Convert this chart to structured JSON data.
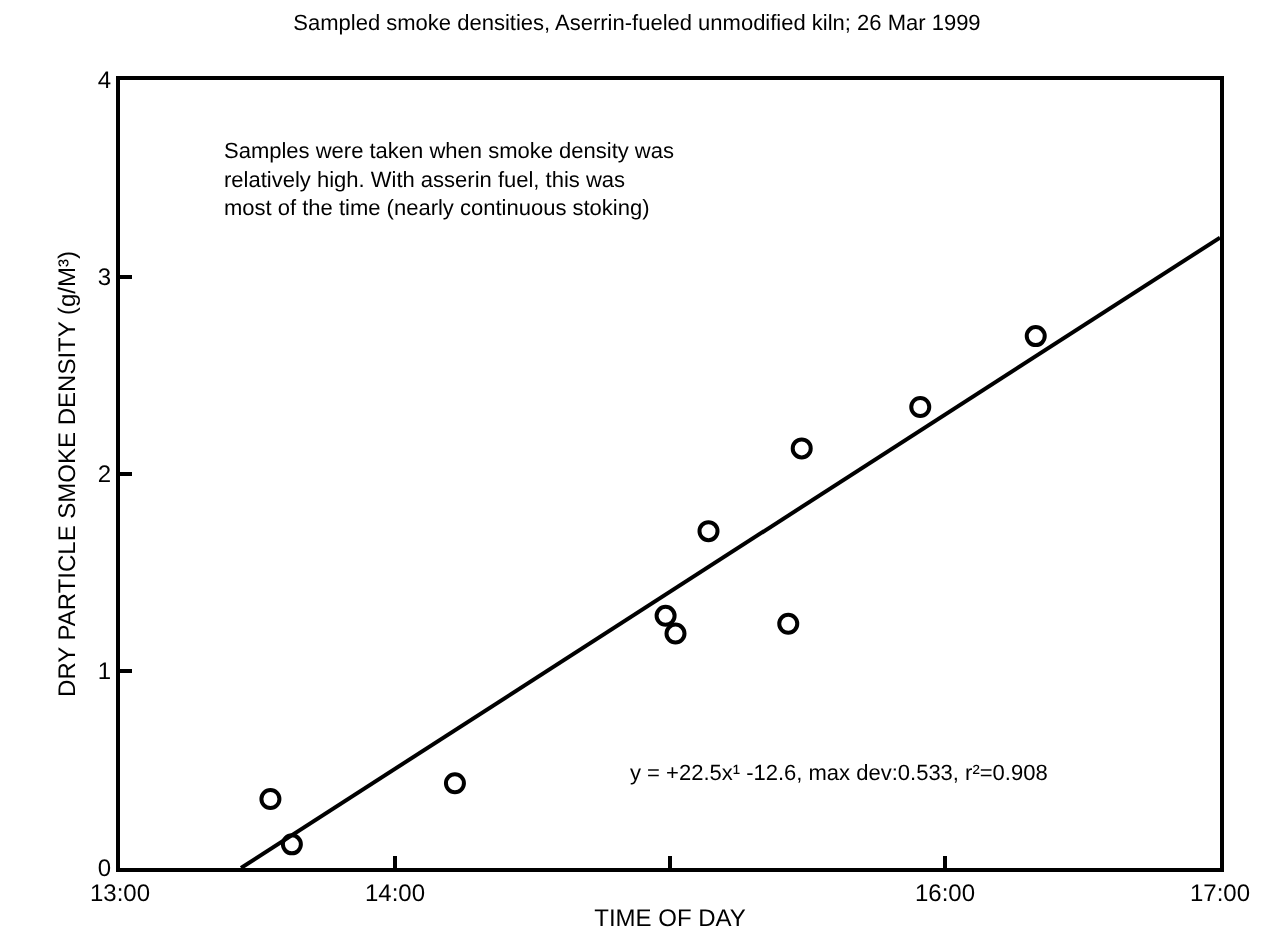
{
  "chart_data": {
    "type": "scatter",
    "title": "Sampled smoke densities, Aserrin-fueled unmodified kiln; 26 Mar 1999",
    "xlabel": "TIME OF DAY",
    "ylabel": "DRY PARTICLE SMOKE DENSITY (g/M³)",
    "annotations": [
      "Samples were taken when smoke density was relatively high. With asserin fuel, this was most of the time (nearly continuous stoking)",
      "y = +22.5x¹ -12.6, max dev:0.533, r²=0.908"
    ],
    "series": [
      {
        "marker": "circle",
        "color": "#000000",
        "x": [
          13.547,
          13.625,
          14.218,
          14.984,
          15.02,
          15.14,
          15.43,
          15.479,
          15.91,
          16.33
        ],
        "values": [
          0.35,
          0.12,
          0.43,
          1.28,
          1.19,
          1.71,
          1.24,
          2.13,
          2.34,
          2.7
        ]
      },
      {
        "type": "line",
        "marker": "none",
        "color": "#000000",
        "x": [
          13.44,
          17
        ],
        "values": [
          0,
          3.2
        ]
      }
    ],
    "xlim": [
      13,
      17
    ],
    "ylim": [
      0,
      4
    ],
    "xticks": [
      {
        "value": 13,
        "label": "13:00"
      },
      {
        "value": 14,
        "label": "14:00"
      },
      {
        "value": 15,
        "label": null
      },
      {
        "value": 16,
        "label": "16:00"
      },
      {
        "value": 17,
        "label": "17:00"
      }
    ],
    "yticks": [
      0,
      1,
      2,
      3,
      4
    ]
  }
}
